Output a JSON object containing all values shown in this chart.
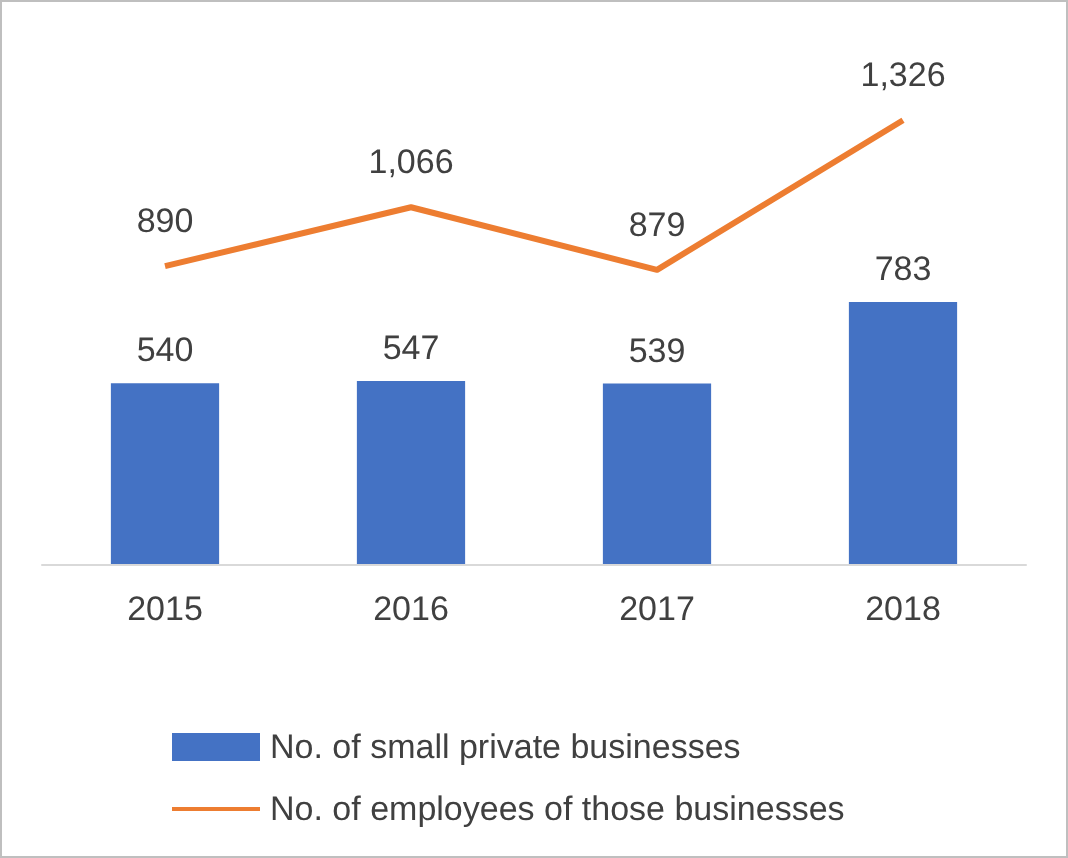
{
  "chart_data": {
    "type": "bar",
    "categories": [
      "2015",
      "2016",
      "2017",
      "2018"
    ],
    "series": [
      {
        "name": "No. of small private businesses",
        "color": "#4472c4",
        "values": [
          540,
          547,
          539,
          783
        ],
        "value_labels": [
          "540",
          "547",
          "539",
          "783"
        ]
      },
      {
        "name": "No. of employees of those businesses",
        "type": "line",
        "color": "#ed7d31",
        "values": [
          890,
          1066,
          879,
          1326
        ],
        "value_labels": [
          "890",
          "1,066",
          "879",
          "1,326"
        ]
      }
    ],
    "legend": "bottom",
    "grid": false,
    "marker": "none"
  }
}
